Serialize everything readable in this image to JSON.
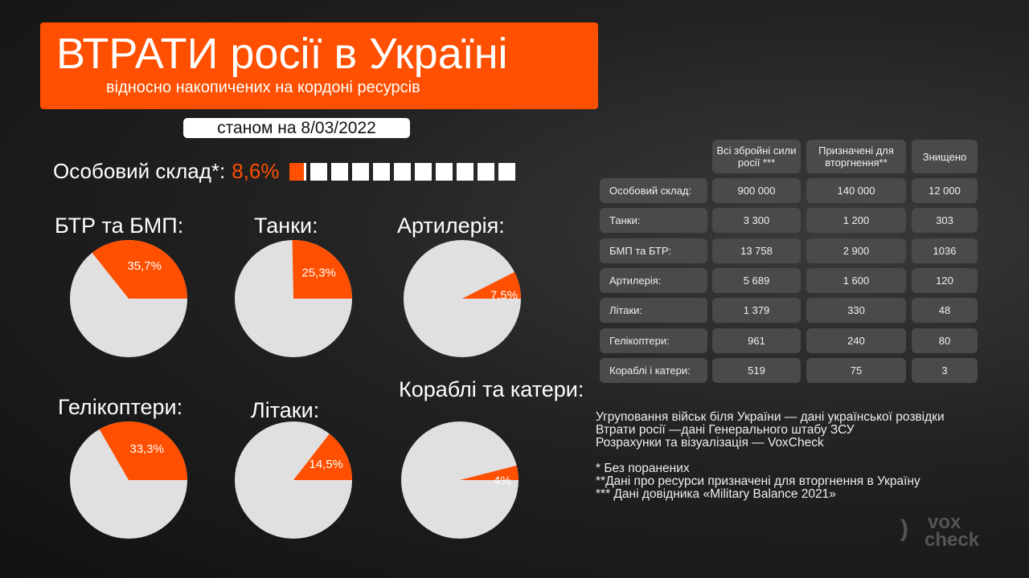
{
  "header": {
    "title": "ВТРАТИ росії в Україні",
    "subtitle": "відносно накопичених на кордоні ресурсів",
    "date": "станом на 8/03/2022"
  },
  "personnel": {
    "label": "Особовий склад*:",
    "percent_label": "8,6%",
    "percent": 8.6,
    "squares": 11
  },
  "colors": {
    "accent": "#ff4f00",
    "pie_rest": "#e0e0e0",
    "cell": "#4a4a4a"
  },
  "chart_data": {
    "type": "pie",
    "charts": [
      {
        "title": "БТР та БМП:",
        "value": 35.7,
        "label": "35,7%"
      },
      {
        "title": "Танки:",
        "value": 25.3,
        "label": "25,3%"
      },
      {
        "title": "Артилерія:",
        "value": 7.5,
        "label": "7,5%"
      },
      {
        "title": "Гелікоптери:",
        "value": 33.3,
        "label": "33,3%"
      },
      {
        "title": "Літаки:",
        "value": 14.5,
        "label": "14,5%"
      },
      {
        "title": "Кораблі та катери:",
        "value": 4,
        "label": "4%"
      }
    ]
  },
  "table": {
    "headers": [
      "Всі збройні сили росії ***",
      "Призначені для вторгнення**",
      "Знищено"
    ],
    "rows": [
      {
        "label": "Особовий склад:",
        "values": [
          "900 000",
          "140 000",
          "12 000"
        ]
      },
      {
        "label": "Танки:",
        "values": [
          "3 300",
          "1 200",
          "303"
        ]
      },
      {
        "label": "БМП та БТР:",
        "values": [
          "13 758",
          "2 900",
          "1036"
        ]
      },
      {
        "label": "Артилерія:",
        "values": [
          "5 689",
          "1 600",
          "120"
        ]
      },
      {
        "label": "Літаки:",
        "values": [
          "1 379",
          "330",
          "48"
        ]
      },
      {
        "label": "Гелікоптери:",
        "values": [
          "961",
          "240",
          "80"
        ]
      },
      {
        "label": "Кораблі і катери:",
        "values": [
          "519",
          "75",
          "3"
        ]
      }
    ]
  },
  "notes": [
    "Угруповання військ біля України  — дані української розвідки",
    "Втрати росії —дані Генерального штабу ЗСУ",
    "Розрахунки та візуалізація — VoxCheck",
    "",
    "* Без поранених",
    "**Дані про ресурси призначені для вторгнення в Україну",
    "*** Дані довідника «Military Balance 2021»"
  ],
  "logo": {
    "text1": "vox",
    "text2": "check"
  }
}
